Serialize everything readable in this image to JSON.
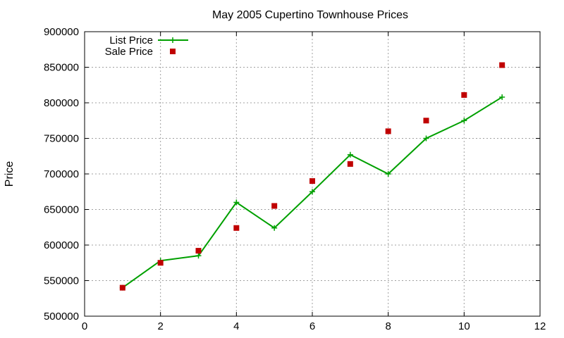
{
  "chart_data": {
    "type": "line",
    "title": "May 2005 Cupertino Townhouse Prices",
    "xlabel": "",
    "ylabel": "Price",
    "xlim": [
      0,
      12
    ],
    "ylim": [
      500000,
      900000
    ],
    "xticks": [
      0,
      2,
      4,
      6,
      8,
      10,
      12
    ],
    "yticks": [
      500000,
      550000,
      600000,
      650000,
      700000,
      750000,
      800000,
      850000,
      900000
    ],
    "grid": true,
    "legend_position": "top-left",
    "series": [
      {
        "name": "List Price",
        "style": "line+cross",
        "color": "#00a000",
        "x": [
          1,
          2,
          3,
          4,
          5,
          6,
          7,
          8,
          9,
          10,
          11
        ],
        "y": [
          540000,
          578000,
          585000,
          660000,
          624000,
          675000,
          727000,
          700000,
          750000,
          775000,
          808000
        ]
      },
      {
        "name": "Sale Price",
        "style": "square-markers",
        "color": "#c00000",
        "x": [
          1,
          2,
          3,
          4,
          5,
          6,
          7,
          8,
          9,
          10,
          11
        ],
        "y": [
          540000,
          575000,
          592000,
          624000,
          655000,
          690000,
          714000,
          760000,
          775000,
          811000,
          853000
        ]
      }
    ]
  }
}
